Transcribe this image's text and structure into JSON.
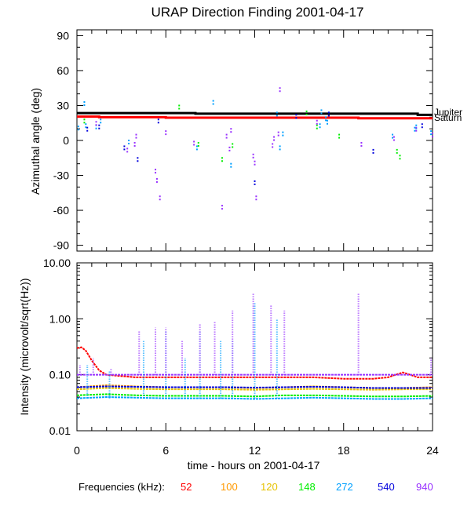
{
  "colors": {
    "f52": "#ff0000",
    "f100": "#ff9900",
    "f120": "#e6c200",
    "f148": "#00ee00",
    "f272": "#00a0ff",
    "f540": "#0000dd",
    "f940": "#9933ff",
    "jupiter": "#000000",
    "saturn": "#ff0000"
  },
  "chart_data": [
    {
      "type": "scatter",
      "title": "URAP Direction Finding  2001-04-17",
      "ylabel": "Azimuthal angle (deg)",
      "xlim": [
        0,
        24
      ],
      "ylim": [
        -95,
        95
      ],
      "yticks": [
        90,
        60,
        30,
        0,
        -30,
        -60,
        -90
      ],
      "reference_lines": [
        {
          "name": "Jupiter",
          "color": "#000000",
          "x": [
            0,
            8,
            8,
            23,
            23,
            24
          ],
          "y": [
            23.5,
            23.5,
            23,
            23,
            22,
            22
          ]
        },
        {
          "name": "Saturn",
          "color": "#ff0000",
          "x": [
            0,
            1.5,
            1.5,
            6,
            6,
            12,
            12,
            19,
            19,
            24
          ],
          "y": [
            20.5,
            20.5,
            20,
            20,
            19.5,
            19.5,
            19.5,
            19.5,
            19,
            19
          ]
        }
      ],
      "series": [
        {
          "name": "148",
          "points": [
            [
              0.5,
              18
            ],
            [
              6.9,
              30
            ],
            [
              8.2,
              -2
            ],
            [
              9.8,
              -15
            ],
            [
              10.5,
              -3
            ],
            [
              15.5,
              25
            ],
            [
              16.2,
              13
            ],
            [
              17.7,
              5
            ],
            [
              21.6,
              -8
            ],
            [
              21.8,
              -13
            ]
          ]
        },
        {
          "name": "272",
          "points": [
            [
              0.1,
              12
            ],
            [
              0.5,
              33
            ],
            [
              0.6,
              14
            ],
            [
              1.3,
              13
            ],
            [
              1.6,
              18
            ],
            [
              3.5,
              0
            ],
            [
              8.1,
              -5
            ],
            [
              9.2,
              34
            ],
            [
              10.4,
              -20
            ],
            [
              13.5,
              24
            ],
            [
              13.7,
              -5
            ],
            [
              13.9,
              7
            ],
            [
              16.4,
              14
            ],
            [
              16.5,
              26
            ],
            [
              16.8,
              20
            ],
            [
              16.9,
              17
            ],
            [
              17.0,
              24
            ],
            [
              21.3,
              5
            ],
            [
              22.8,
              11
            ],
            [
              22.9,
              13
            ],
            [
              23.9,
              8
            ]
          ]
        },
        {
          "name": "540",
          "points": [
            [
              0.7,
              11
            ],
            [
              1.5,
              13
            ],
            [
              3.2,
              -5
            ],
            [
              4.1,
              -15
            ],
            [
              5.5,
              18
            ],
            [
              12.0,
              -35
            ],
            [
              14.8,
              22
            ],
            [
              17.0,
              24
            ],
            [
              20.0,
              -8
            ],
            [
              23.3,
              14
            ]
          ]
        },
        {
          "name": "940",
          "points": [
            [
              1.3,
              16
            ],
            [
              3.4,
              -7
            ],
            [
              3.9,
              -2
            ],
            [
              4.0,
              5
            ],
            [
              5.3,
              -25
            ],
            [
              5.4,
              -33
            ],
            [
              5.6,
              -48
            ],
            [
              6.0,
              8
            ],
            [
              7.9,
              -1
            ],
            [
              9.8,
              -56
            ],
            [
              10.1,
              5
            ],
            [
              10.3,
              -6
            ],
            [
              10.4,
              10
            ],
            [
              11.9,
              -12
            ],
            [
              12.0,
              -18
            ],
            [
              12.1,
              -48
            ],
            [
              13.2,
              -3
            ],
            [
              13.3,
              3
            ],
            [
              13.6,
              7
            ],
            [
              13.7,
              45
            ],
            [
              16.2,
              17
            ],
            [
              19.2,
              -2
            ],
            [
              21.4,
              3
            ],
            [
              22.9,
              11
            ],
            [
              24.0,
              6
            ]
          ]
        }
      ]
    },
    {
      "type": "line",
      "ylabel": "Intensity (microvolt/sqrt(Hz))",
      "xlabel": "time - hours on 2001-04-17",
      "xlim": [
        0,
        24
      ],
      "xticks": [
        0,
        6,
        12,
        18,
        24
      ],
      "ylim": [
        0.01,
        10
      ],
      "yscale": "log",
      "yticks": [
        10,
        1,
        0.1,
        0.01
      ],
      "ytick_labels": [
        "10.00",
        "1.00",
        "0.10",
        "0.01"
      ],
      "series": [
        {
          "name": "52",
          "x": [
            0,
            0.3,
            0.6,
            1,
            1.5,
            2,
            4,
            6,
            8,
            10,
            12,
            14,
            16,
            18,
            20,
            21,
            21.5,
            22,
            22.5,
            23,
            24
          ],
          "values": [
            0.3,
            0.31,
            0.27,
            0.18,
            0.12,
            0.1,
            0.09,
            0.09,
            0.09,
            0.09,
            0.09,
            0.09,
            0.09,
            0.085,
            0.085,
            0.09,
            0.1,
            0.11,
            0.1,
            0.09,
            0.09
          ]
        },
        {
          "name": "100",
          "x": [
            0,
            2,
            4,
            6,
            8,
            10,
            12,
            14,
            16,
            18,
            20,
            22,
            24
          ],
          "values": [
            0.06,
            0.065,
            0.062,
            0.06,
            0.06,
            0.06,
            0.058,
            0.06,
            0.062,
            0.06,
            0.058,
            0.058,
            0.06
          ]
        },
        {
          "name": "120",
          "x": [
            0,
            2,
            4,
            6,
            8,
            10,
            12,
            14,
            16,
            18,
            20,
            22,
            24
          ],
          "values": [
            0.055,
            0.058,
            0.056,
            0.055,
            0.055,
            0.055,
            0.054,
            0.055,
            0.056,
            0.055,
            0.054,
            0.055,
            0.055
          ]
        },
        {
          "name": "148",
          "x": [
            0,
            2,
            4,
            6,
            8,
            10,
            12,
            14,
            16,
            18,
            20,
            22,
            24
          ],
          "values": [
            0.043,
            0.045,
            0.043,
            0.042,
            0.042,
            0.042,
            0.041,
            0.043,
            0.043,
            0.042,
            0.041,
            0.041,
            0.042
          ]
        },
        {
          "name": "272",
          "x": [
            0,
            2,
            4,
            6,
            8,
            10,
            12,
            14,
            16,
            18,
            20,
            22,
            24
          ],
          "values": [
            0.038,
            0.04,
            0.039,
            0.038,
            0.038,
            0.038,
            0.037,
            0.038,
            0.039,
            0.038,
            0.037,
            0.037,
            0.038
          ]
        },
        {
          "name": "540",
          "x": [
            0,
            2,
            4,
            6,
            8,
            10,
            12,
            14,
            16,
            18,
            20,
            22,
            24
          ],
          "values": [
            0.06,
            0.062,
            0.061,
            0.06,
            0.06,
            0.06,
            0.059,
            0.06,
            0.061,
            0.06,
            0.058,
            0.058,
            0.058
          ]
        },
        {
          "name": "940",
          "x": [
            0,
            2,
            4,
            6,
            8,
            10,
            12,
            14,
            16,
            18,
            20,
            22,
            24
          ],
          "values": [
            0.1,
            0.1,
            0.1,
            0.1,
            0.1,
            0.1,
            0.1,
            0.1,
            0.1,
            0.1,
            0.1,
            0.1,
            0.1
          ]
        }
      ],
      "peaks": [
        {
          "name": "272",
          "x": [
            0.7,
            2.2,
            4.5,
            6.0,
            7.3,
            8.3,
            9.7,
            10.5,
            12.0,
            13.5
          ],
          "values": [
            0.15,
            0.12,
            0.4,
            0.6,
            0.2,
            0.6,
            0.4,
            0.4,
            2.0,
            1.0
          ]
        },
        {
          "name": "940",
          "x": [
            0.2,
            1.1,
            2.3,
            4.2,
            5.3,
            6.0,
            7.1,
            8.3,
            9.3,
            10.5,
            11.9,
            13.1,
            14.0,
            19.0,
            23.9
          ],
          "values": [
            0.15,
            0.2,
            0.13,
            0.6,
            0.7,
            0.7,
            0.4,
            0.8,
            0.9,
            1.4,
            2.9,
            1.8,
            1.4,
            2.9,
            0.2
          ]
        }
      ]
    }
  ],
  "legend": {
    "label": "Frequencies (kHz):",
    "items": [
      {
        "label": "52",
        "color": "#ff0000"
      },
      {
        "label": "100",
        "color": "#ff9900"
      },
      {
        "label": "120",
        "color": "#e6c200"
      },
      {
        "label": "148",
        "color": "#00ee00"
      },
      {
        "label": "272",
        "color": "#00a0ff"
      },
      {
        "label": "540",
        "color": "#0000dd"
      },
      {
        "label": "940",
        "color": "#9933ff"
      }
    ]
  },
  "planet_labels": {
    "top": "Jupiter",
    "bottom": "Saturn"
  }
}
